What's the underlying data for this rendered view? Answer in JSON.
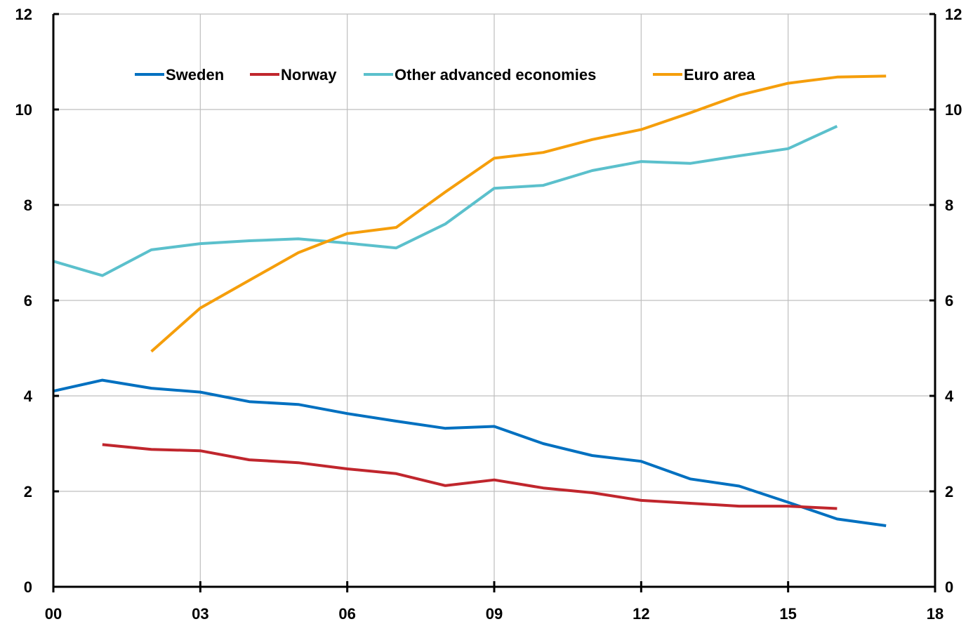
{
  "chart_data": {
    "type": "line",
    "title": "",
    "xlabel": "",
    "ylabel": "",
    "x_tick_labels": [
      "00",
      "03",
      "06",
      "09",
      "12",
      "15",
      "18"
    ],
    "y_tick_labels": [
      "0",
      "2",
      "4",
      "6",
      "8",
      "10",
      "12"
    ],
    "y_tick_values": [
      0,
      2,
      4,
      6,
      8,
      10,
      12
    ],
    "xlim": [
      2000,
      2018
    ],
    "ylim": [
      0,
      12
    ],
    "secondary_y_axis": true,
    "grid": "vertical and horizontal",
    "legend_position": "top",
    "series": [
      {
        "name": "Sweden",
        "color": "#0070c0",
        "x": [
          2000,
          2001,
          2002,
          2003,
          2004,
          2005,
          2006,
          2007,
          2008,
          2009,
          2010,
          2011,
          2012,
          2013,
          2014,
          2015,
          2016,
          2017
        ],
        "values": [
          4.1,
          4.33,
          4.16,
          4.08,
          3.88,
          3.82,
          3.63,
          3.47,
          3.32,
          3.36,
          3.0,
          2.75,
          2.63,
          2.26,
          2.11,
          1.77,
          1.42,
          1.28
        ]
      },
      {
        "name": "Norway",
        "color": "#c0262d",
        "x": [
          2001,
          2002,
          2003,
          2004,
          2005,
          2006,
          2007,
          2008,
          2009,
          2010,
          2011,
          2012,
          2013,
          2014,
          2015,
          2016
        ],
        "values": [
          2.98,
          2.88,
          2.85,
          2.66,
          2.6,
          2.47,
          2.37,
          2.12,
          2.24,
          2.07,
          1.97,
          1.81,
          1.75,
          1.69,
          1.69,
          1.64
        ]
      },
      {
        "name": "Other advanced economies",
        "color": "#5bc0cc",
        "x": [
          2000,
          2001,
          2002,
          2003,
          2004,
          2005,
          2006,
          2007,
          2008,
          2009,
          2010,
          2011,
          2012,
          2013,
          2014,
          2015,
          2016
        ],
        "values": [
          6.82,
          6.52,
          7.06,
          7.19,
          7.25,
          7.29,
          7.2,
          7.1,
          7.6,
          8.35,
          8.41,
          8.72,
          8.91,
          8.87,
          9.03,
          9.18,
          9.65
        ]
      },
      {
        "name": "Euro area",
        "color": "#f59e0b",
        "x": [
          2002,
          2003,
          2004,
          2005,
          2006,
          2007,
          2008,
          2009,
          2010,
          2011,
          2012,
          2013,
          2014,
          2015,
          2016,
          2017
        ],
        "values": [
          4.93,
          5.84,
          6.42,
          7.0,
          7.4,
          7.53,
          8.27,
          8.98,
          9.1,
          9.37,
          9.58,
          9.93,
          10.3,
          10.55,
          10.68,
          10.7
        ]
      }
    ]
  }
}
